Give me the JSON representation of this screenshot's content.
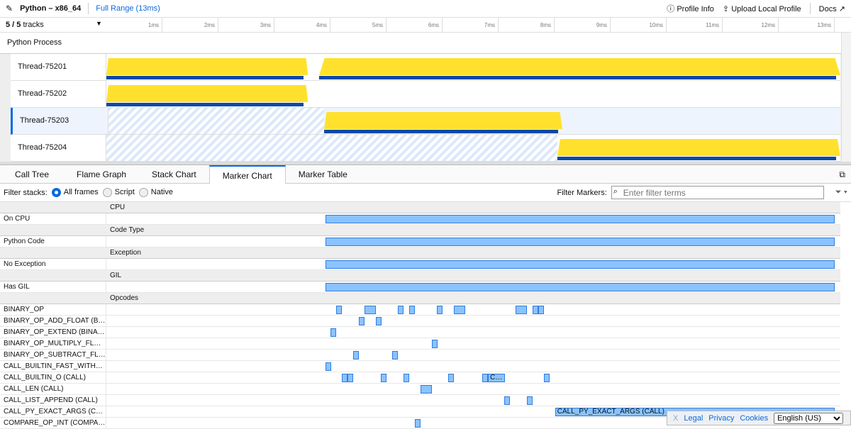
{
  "header": {
    "title": "Python – x86_64",
    "range": "Full Range (13ms)",
    "profile_info": "Profile Info",
    "upload": "Upload Local Profile",
    "docs": "Docs"
  },
  "ruler": {
    "track_count": "5 / 5",
    "tracks_label": "tracks",
    "ticks": [
      "1ms",
      "2ms",
      "3ms",
      "4ms",
      "5ms",
      "6ms",
      "7ms",
      "8ms",
      "9ms",
      "10ms",
      "11ms",
      "12ms",
      "13ms"
    ]
  },
  "process": "Python Process",
  "threads": [
    {
      "name": "Thread-75201",
      "active": [
        [
          0,
          3.6
        ],
        [
          3.8,
          13.1
        ]
      ],
      "selected": false
    },
    {
      "name": "Thread-75202",
      "active": [
        [
          0,
          3.6
        ]
      ],
      "selected": false
    },
    {
      "name": "Thread-75203",
      "active": [
        [
          3.85,
          8.1
        ]
      ],
      "selected": true
    },
    {
      "name": "Thread-75204",
      "active": [
        [
          8.05,
          13.1
        ]
      ],
      "selected": false
    }
  ],
  "tabs": [
    "Call Tree",
    "Flame Graph",
    "Stack Chart",
    "Marker Chart",
    "Marker Table"
  ],
  "active_tab": "Marker Chart",
  "filter": {
    "label": "Filter stacks:",
    "options": [
      "All frames",
      "Script",
      "Native"
    ],
    "selected": "All frames",
    "markers_label": "Filter Markers:",
    "placeholder": "Enter filter terms"
  },
  "marker_rows": [
    {
      "header": "CPU"
    },
    {
      "name": "On CPU",
      "markers": [
        [
          3.91,
          13.0
        ]
      ]
    },
    {
      "header": "Code Type"
    },
    {
      "name": "Python Code",
      "markers": [
        [
          3.91,
          13.0
        ]
      ]
    },
    {
      "header": "Exception"
    },
    {
      "name": "No Exception",
      "markers": [
        [
          3.91,
          13.0
        ]
      ]
    },
    {
      "header": "GIL"
    },
    {
      "name": "Has GIL",
      "markers": [
        [
          3.91,
          13.0
        ]
      ]
    },
    {
      "header": "Opcodes"
    },
    {
      "name": "BINARY_OP",
      "markers": [
        [
          4.1,
          4.2
        ],
        [
          4.61,
          4.81
        ],
        [
          5.2,
          5.3
        ],
        [
          5.41,
          5.51
        ],
        [
          5.9,
          6.0
        ],
        [
          6.2,
          6.41
        ],
        [
          7.3,
          7.51
        ],
        [
          7.61,
          7.71
        ],
        [
          7.71,
          7.81
        ]
      ]
    },
    {
      "name": "BINARY_OP_ADD_FLOAT (B…",
      "markers": [
        [
          4.51,
          4.61
        ],
        [
          4.81,
          4.91
        ]
      ]
    },
    {
      "name": "BINARY_OP_EXTEND (BINA…",
      "markers": [
        [
          4.0,
          4.1
        ]
      ]
    },
    {
      "name": "BINARY_OP_MULTIPLY_FL…",
      "markers": [
        [
          5.81,
          5.91
        ]
      ]
    },
    {
      "name": "BINARY_OP_SUBTRACT_FL…",
      "markers": [
        [
          4.41,
          4.51
        ],
        [
          5.1,
          5.2
        ]
      ]
    },
    {
      "name": "CALL_BUILTIN_FAST_WITH…",
      "markers": [
        [
          3.91,
          4.0
        ]
      ]
    },
    {
      "name": "CALL_BUILTIN_O (CALL)",
      "markers": [
        [
          4.2,
          4.3
        ],
        [
          4.3,
          4.41
        ],
        [
          4.9,
          5.0
        ],
        [
          5.3,
          5.41
        ],
        [
          6.1,
          6.2
        ],
        [
          6.71,
          6.81
        ],
        [
          6.81,
          7.11,
          "C…"
        ],
        [
          7.81,
          7.91
        ]
      ]
    },
    {
      "name": "CALL_LEN (CALL)",
      "markers": [
        [
          5.61,
          5.81
        ]
      ]
    },
    {
      "name": "CALL_LIST_APPEND (CALL)",
      "markers": [
        [
          7.1,
          7.2
        ],
        [
          7.51,
          7.61
        ]
      ]
    },
    {
      "name": "CALL_PY_EXACT_ARGS (C…",
      "markers": [
        [
          8.01,
          13.0,
          "CALL_PY_EXACT_ARGS (CALL)"
        ]
      ]
    },
    {
      "name": "COMPARE_OP_INT (COMPA…",
      "markers": [
        [
          5.51,
          5.61
        ]
      ]
    }
  ],
  "footer": {
    "close": "X",
    "legal": "Legal",
    "privacy": "Privacy",
    "cookies": "Cookies",
    "language": "English (US)"
  },
  "colors": {
    "accent": "#0a6ae0",
    "cpu_graph": "#ffe12d",
    "marker": "#8ac3ff"
  }
}
